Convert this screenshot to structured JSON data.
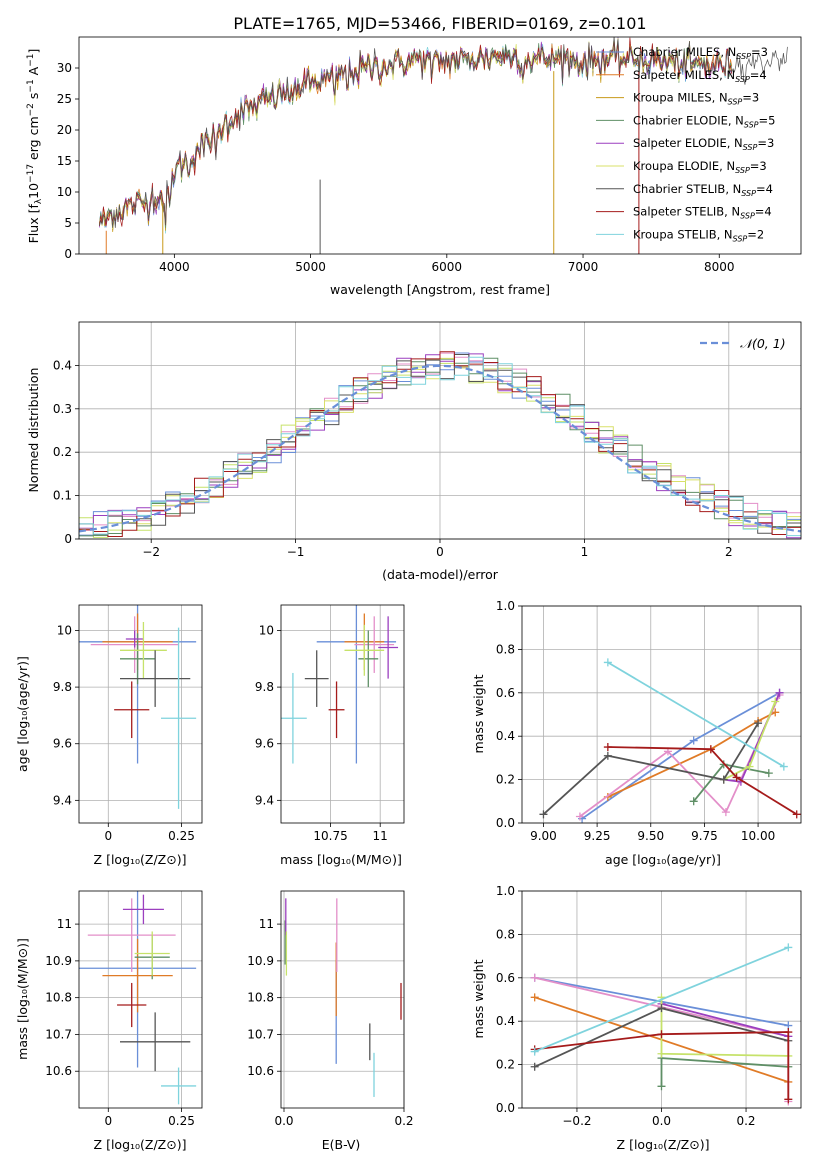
{
  "figure_title": "PLATE=1765, MJD=53466, FIBERID=0169, z=0.101",
  "colors": {
    "Chabrier MILES": "#6a8fd8",
    "Salpeter MILES": "#e07b27",
    "Kroupa MILES": "#c89a1a",
    "Chabrier ELODIE": "#5f8f66",
    "Salpeter ELODIE": "#9b3fbf",
    "Kroupa ELODIE": "#d9e06a",
    "Chabrier STELIB": "#555555",
    "Salpeter STELIB": "#a51b1b",
    "Kroupa STELIB": "#7fd3dd",
    "Kroupa MILES (panels)": "#e38fc9",
    "Kroupa ELODIE (panels)": "#c6e26a",
    "normal_curve": "#6a8fd8"
  },
  "chart_data": [
    {
      "id": "spectrum",
      "type": "line",
      "title": "PLATE=1765, MJD=53466, FIBERID=0169, z=0.101",
      "xlabel": "wavelength [Angstrom, rest frame]",
      "ylabel": "Flux [f_λ10^-17 erg cm^-2 s^-1 A^-1]",
      "xlim": [
        3300,
        8600
      ],
      "ylim": [
        0,
        35
      ],
      "xticks": [
        4000,
        5000,
        6000,
        7000,
        8000
      ],
      "yticks": [
        0,
        5,
        10,
        15,
        20,
        25,
        30
      ],
      "grid": false,
      "legend": "top-right",
      "legend_entries": [
        {
          "text": "Chabrier MILES, N",
          "sub": "SSP",
          "suffix": "=3"
        },
        {
          "text": "Salpeter MILES, N",
          "sub": "SSP",
          "suffix": "=4"
        },
        {
          "text": "Kroupa MILES, N",
          "sub": "SSP",
          "suffix": "=3"
        },
        {
          "text": "Chabrier ELODIE, N",
          "sub": "SSP",
          "suffix": "=5"
        },
        {
          "text": "Salpeter ELODIE, N",
          "sub": "SSP",
          "suffix": "=3"
        },
        {
          "text": "Kroupa ELODIE, N",
          "sub": "SSP",
          "suffix": "=3"
        },
        {
          "text": "Chabrier STELIB, N",
          "sub": "SSP",
          "suffix": "=4"
        },
        {
          "text": "Salpeter STELIB, N",
          "sub": "SSP",
          "suffix": "=4"
        },
        {
          "text": "Kroupa STELIB, N",
          "sub": "SSP",
          "suffix": "=2"
        }
      ],
      "continuum": [
        [
          3450,
          5.0
        ],
        [
          3550,
          6.5
        ],
        [
          3650,
          7.5
        ],
        [
          3800,
          8.5
        ],
        [
          3900,
          9.5
        ],
        [
          4000,
          13.5
        ],
        [
          4100,
          15.5
        ],
        [
          4200,
          17.0
        ],
        [
          4300,
          19.5
        ],
        [
          4400,
          21.5
        ],
        [
          4500,
          23.0
        ],
        [
          4600,
          24.0
        ],
        [
          4700,
          25.0
        ],
        [
          4800,
          26.0
        ],
        [
          4900,
          27.0
        ],
        [
          5000,
          27.5
        ],
        [
          5100,
          28.0
        ],
        [
          5200,
          29.0
        ],
        [
          5400,
          30.0
        ],
        [
          5600,
          30.5
        ],
        [
          5800,
          31.5
        ],
        [
          6000,
          31.0
        ],
        [
          6200,
          31.5
        ],
        [
          6400,
          32.0
        ],
        [
          6600,
          31.5
        ],
        [
          6800,
          31.5
        ],
        [
          7000,
          31.0
        ],
        [
          7200,
          31.5
        ],
        [
          7400,
          31.5
        ],
        [
          7600,
          31.0
        ],
        [
          7800,
          30.5
        ],
        [
          8000,
          30.5
        ],
        [
          8200,
          31.0
        ],
        [
          8500,
          31.5
        ]
      ]
    },
    {
      "id": "residual-histogram",
      "type": "histogram",
      "xlabel": "(data-model)/error",
      "ylabel": "Normed distribution",
      "xlim": [
        -2.5,
        2.5
      ],
      "ylim": [
        0,
        0.5
      ],
      "xticks": [
        -2,
        -1,
        0,
        1,
        2
      ],
      "yticks": [
        0.0,
        0.1,
        0.2,
        0.3,
        0.4
      ],
      "grid": true,
      "legend": "top-right",
      "legend_entries": [
        "𝒩(0, 1)"
      ],
      "bin_width": 0.1,
      "bin_start": -2.5
    },
    {
      "id": "age-vs-z",
      "type": "errorbar",
      "xlabel": "Z [log₁₀(Z/Z⊙)]",
      "ylabel": "age  [log₁₀(age/yr)]",
      "xlim": [
        -0.1,
        0.32
      ],
      "ylim": [
        9.32,
        10.09
      ],
      "xticks": [
        0.0,
        0.25
      ],
      "yticks": [
        9.4,
        9.6,
        9.8,
        10.0
      ],
      "grid": true,
      "points": [
        {
          "series": "Chabrier MILES",
          "x": 0.1,
          "xerr": 0.2,
          "y": 9.96,
          "yerr": 0.43
        },
        {
          "series": "Salpeter MILES",
          "x": 0.1,
          "xerr": 0.12,
          "y": 9.96,
          "yerr": 0.1
        },
        {
          "series": "Kroupa MILES (panels)",
          "x": 0.09,
          "xerr": 0.15,
          "y": 9.95,
          "yerr": 0.1
        },
        {
          "series": "Chabrier ELODIE",
          "x": 0.1,
          "xerr": 0.06,
          "y": 9.9,
          "yerr": 0.09
        },
        {
          "series": "Salpeter ELODIE",
          "x": 0.09,
          "xerr": 0.03,
          "y": 9.97,
          "yerr": 0.03
        },
        {
          "series": "Kroupa ELODIE (panels)",
          "x": 0.12,
          "xerr": 0.08,
          "y": 9.93,
          "yerr": 0.1
        },
        {
          "series": "Chabrier STELIB",
          "x": 0.16,
          "xerr": 0.12,
          "y": 9.83,
          "yerr": 0.1
        },
        {
          "series": "Salpeter STELIB",
          "x": 0.08,
          "xerr": 0.06,
          "y": 9.72,
          "yerr": 0.1
        },
        {
          "series": "Kroupa STELIB",
          "x": 0.24,
          "xerr": 0.06,
          "y": 9.69,
          "yerr": 0.32
        }
      ]
    },
    {
      "id": "age-vs-mass",
      "type": "errorbar",
      "xlabel": "mass [log₁₀(M/M⊙)]",
      "ylabel": "",
      "xlim": [
        10.5,
        11.12
      ],
      "ylim": [
        9.32,
        10.09
      ],
      "xticks": [
        10.75,
        11.0
      ],
      "yticks": [
        9.4,
        9.6,
        9.8,
        10.0
      ],
      "grid": true,
      "points": [
        {
          "series": "Chabrier MILES",
          "x": 10.88,
          "xerr": 0.2,
          "y": 9.96,
          "yerr": 0.43
        },
        {
          "series": "Salpeter MILES",
          "x": 10.92,
          "xerr": 0.1,
          "y": 9.96,
          "yerr": 0.1
        },
        {
          "series": "Kroupa MILES (panels)",
          "x": 10.97,
          "xerr": 0.1,
          "y": 9.95,
          "yerr": 0.1
        },
        {
          "series": "Chabrier ELODIE",
          "x": 10.94,
          "xerr": 0.05,
          "y": 9.9,
          "yerr": 0.1
        },
        {
          "series": "Salpeter ELODIE",
          "x": 11.04,
          "xerr": 0.05,
          "y": 9.94,
          "yerr": 0.11
        },
        {
          "series": "Kroupa ELODIE (panels)",
          "x": 10.92,
          "xerr": 0.1,
          "y": 9.93,
          "yerr": 0.09
        },
        {
          "series": "Chabrier STELIB",
          "x": 10.68,
          "xerr": 0.06,
          "y": 9.83,
          "yerr": 0.1
        },
        {
          "series": "Salpeter STELIB",
          "x": 10.78,
          "xerr": 0.04,
          "y": 9.72,
          "yerr": 0.1
        },
        {
          "series": "Kroupa STELIB",
          "x": 10.56,
          "xerr": 0.07,
          "y": 9.69,
          "yerr": 0.16
        }
      ]
    },
    {
      "id": "weight-vs-age",
      "type": "line",
      "xlabel": "age  [log₁₀(age/yr)]",
      "ylabel": "mass weight",
      "xlim": [
        8.9,
        10.2
      ],
      "ylim": [
        0,
        1.0
      ],
      "xticks": [
        "9.00",
        "9.25",
        "9.50",
        "9.75",
        "10.00"
      ],
      "xtick_values": [
        9.0,
        9.25,
        9.5,
        9.75,
        10.0
      ],
      "yticks": [
        "0.0",
        "0.2",
        "0.4",
        "0.6",
        "0.8",
        "1.0"
      ],
      "grid": true,
      "series": [
        {
          "name": "Chabrier MILES",
          "x": [
            9.18,
            9.7,
            10.1
          ],
          "y": [
            0.02,
            0.38,
            0.6
          ]
        },
        {
          "name": "Salpeter MILES",
          "x": [
            9.3,
            9.78,
            10.0,
            10.08
          ],
          "y": [
            0.12,
            0.34,
            0.47,
            0.51
          ]
        },
        {
          "name": "Kroupa MILES (panels)",
          "x": [
            9.17,
            9.58,
            9.85,
            10.1
          ],
          "y": [
            0.03,
            0.33,
            0.05,
            0.59
          ]
        },
        {
          "name": "Chabrier ELODIE",
          "x": [
            9.7,
            9.84,
            10.05
          ],
          "y": [
            0.1,
            0.27,
            0.23
          ]
        },
        {
          "name": "Salpeter ELODIE",
          "x": [
            9.84,
            9.92,
            10.1
          ],
          "y": [
            0.2,
            0.19,
            0.6
          ]
        },
        {
          "name": "Kroupa ELODIE (panels)",
          "x": [
            9.84,
            9.96,
            10.08
          ],
          "y": [
            0.2,
            0.26,
            0.56
          ]
        },
        {
          "name": "Chabrier STELIB",
          "x": [
            9.0,
            9.3,
            9.84,
            10.0
          ],
          "y": [
            0.04,
            0.31,
            0.2,
            0.46
          ]
        },
        {
          "name": "Salpeter STELIB",
          "x": [
            9.3,
            9.78,
            9.9,
            10.18
          ],
          "y": [
            0.35,
            0.34,
            0.21,
            0.04
          ]
        },
        {
          "name": "Kroupa STELIB",
          "x": [
            9.3,
            10.12
          ],
          "y": [
            0.74,
            0.26
          ]
        }
      ]
    },
    {
      "id": "mass-vs-z",
      "type": "errorbar",
      "xlabel": "Z [log₁₀(Z/Z⊙)]",
      "ylabel": "mass [log₁₀(M/M⊙)]",
      "xlim": [
        -0.1,
        0.32
      ],
      "ylim": [
        10.5,
        11.09
      ],
      "xticks": [
        0.0,
        0.25
      ],
      "yticks": [
        10.6,
        10.7,
        10.8,
        10.9,
        11.0
      ],
      "grid": true,
      "points": [
        {
          "series": "Chabrier MILES",
          "x": 0.1,
          "xerr": 0.2,
          "y": 10.88,
          "yerr": 0.27
        },
        {
          "series": "Salpeter MILES",
          "x": 0.1,
          "xerr": 0.12,
          "y": 10.86,
          "yerr": 0.1
        },
        {
          "series": "Kroupa MILES (panels)",
          "x": 0.08,
          "xerr": 0.15,
          "y": 10.97,
          "yerr": 0.1
        },
        {
          "series": "Chabrier ELODIE",
          "x": 0.15,
          "xerr": 0.06,
          "y": 10.91,
          "yerr": 0.06
        },
        {
          "series": "Salpeter ELODIE",
          "x": 0.12,
          "xerr": 0.07,
          "y": 11.04,
          "yerr": 0.04
        },
        {
          "series": "Kroupa ELODIE (panels)",
          "x": 0.15,
          "xerr": 0.06,
          "y": 10.92,
          "yerr": 0.06
        },
        {
          "series": "Chabrier STELIB",
          "x": 0.16,
          "xerr": 0.12,
          "y": 10.68,
          "yerr": 0.08
        },
        {
          "series": "Salpeter STELIB",
          "x": 0.08,
          "xerr": 0.05,
          "y": 10.78,
          "yerr": 0.06
        },
        {
          "series": "Kroupa STELIB",
          "x": 0.24,
          "xerr": 0.06,
          "y": 10.56,
          "yerr": 0.05
        }
      ]
    },
    {
      "id": "mass-vs-ebv",
      "type": "errorbar",
      "xlabel": "E(B-V)",
      "ylabel": "",
      "xlim": [
        -0.005,
        0.2
      ],
      "ylim": [
        10.5,
        11.09
      ],
      "xticks": [
        "0.0",
        "0.2"
      ],
      "xtick_values": [
        0.0,
        0.2
      ],
      "yticks": [
        10.6,
        10.7,
        10.8,
        10.9,
        11.0
      ],
      "grid": true,
      "points": [
        {
          "series": "Chabrier MILES",
          "x": 0.087,
          "xerr": 0,
          "y": 10.76,
          "yerr": 0.14
        },
        {
          "series": "Salpeter MILES",
          "x": 0.087,
          "xerr": 0,
          "y": 10.85,
          "yerr": 0.1
        },
        {
          "series": "Kroupa MILES (panels)",
          "x": 0.088,
          "xerr": 0,
          "y": 10.97,
          "yerr": 0.1
        },
        {
          "series": "Chabrier ELODIE",
          "x": 0.002,
          "xerr": 0,
          "y": 10.95,
          "yerr": 0.06
        },
        {
          "series": "Salpeter ELODIE",
          "x": 0.003,
          "xerr": 0,
          "y": 11.02,
          "yerr": 0.05
        },
        {
          "series": "Kroupa ELODIE (panels)",
          "x": 0.004,
          "xerr": 0,
          "y": 10.92,
          "yerr": 0.06
        },
        {
          "series": "Chabrier STELIB",
          "x": 0.143,
          "xerr": 0,
          "y": 10.68,
          "yerr": 0.05
        },
        {
          "series": "Salpeter STELIB",
          "x": 0.195,
          "xerr": 0,
          "y": 10.79,
          "yerr": 0.05
        },
        {
          "series": "Kroupa STELIB",
          "x": 0.15,
          "xerr": 0,
          "y": 10.59,
          "yerr": 0.06
        }
      ]
    },
    {
      "id": "weight-vs-z",
      "type": "line",
      "xlabel": "Z [log₁₀(Z/Z⊙)]",
      "ylabel": "mass weight",
      "xlim": [
        -0.33,
        0.33
      ],
      "ylim": [
        0,
        1.0
      ],
      "xticks": [
        "−0.2",
        "0.0",
        "0.2"
      ],
      "xtick_values": [
        -0.2,
        0.0,
        0.2
      ],
      "yticks": [
        "0.0",
        "0.2",
        "0.4",
        "0.6",
        "0.8",
        "1.0"
      ],
      "grid": true,
      "series": [
        {
          "name": "Chabrier MILES",
          "x": [
            -0.3,
            0.3
          ],
          "y": [
            0.6,
            0.38
          ]
        },
        {
          "name": "Salpeter MILES",
          "x": [
            -0.3,
            0.3
          ],
          "y": [
            0.51,
            0.12
          ]
        },
        {
          "name": "Kroupa MILES (panels)",
          "x": [
            -0.3,
            0.3,
            0.3
          ],
          "y": [
            0.6,
            0.33,
            0.03
          ]
        },
        {
          "name": "Chabrier ELODIE",
          "x": [
            0.0,
            0.0,
            0.3
          ],
          "y": [
            0.1,
            0.23,
            0.19
          ]
        },
        {
          "name": "Salpeter ELODIE",
          "x": [
            0.0,
            0.3
          ],
          "y": [
            0.48,
            0.33
          ]
        },
        {
          "name": "Kroupa ELODIE (panels)",
          "x": [
            0.0,
            0.0,
            0.3
          ],
          "y": [
            0.51,
            0.25,
            0.24
          ]
        },
        {
          "name": "Chabrier STELIB",
          "x": [
            -0.3,
            0.0,
            0.3
          ],
          "y": [
            0.19,
            0.46,
            0.31
          ]
        },
        {
          "name": "Salpeter STELIB",
          "x": [
            -0.3,
            0.0,
            0.3,
            0.3
          ],
          "y": [
            0.27,
            0.34,
            0.35,
            0.04
          ]
        },
        {
          "name": "Kroupa STELIB",
          "x": [
            -0.3,
            0.3
          ],
          "y": [
            0.26,
            0.74
          ]
        }
      ]
    }
  ]
}
